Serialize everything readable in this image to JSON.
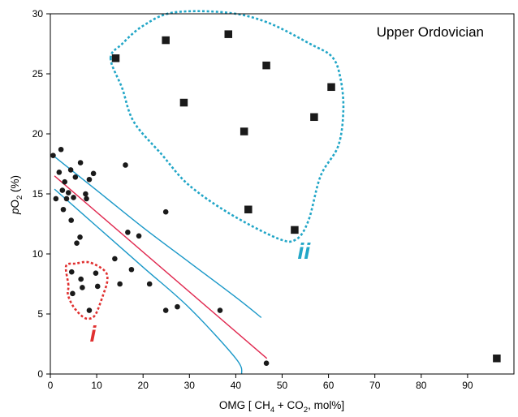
{
  "chart_data": {
    "type": "scatter",
    "title": "Upper Ordovician",
    "xlabel_parts": [
      "OMG [ CH",
      "4",
      " + CO",
      "2",
      ", mol%]"
    ],
    "ylabel_parts": [
      "p",
      "O",
      "2",
      " (%)"
    ],
    "xlim": [
      0,
      100
    ],
    "ylim": [
      0,
      30
    ],
    "x_ticks": [
      0,
      10,
      20,
      30,
      40,
      50,
      60,
      70,
      80,
      90
    ],
    "y_ticks": [
      0,
      5,
      10,
      15,
      20,
      25,
      30
    ],
    "grid": false,
    "series": [
      {
        "marker": "circle",
        "color": "#1a1a1a",
        "points": [
          [
            0.6,
            18.2
          ],
          [
            2.3,
            18.7
          ],
          [
            1.2,
            14.6
          ],
          [
            1.9,
            16.8
          ],
          [
            2.6,
            15.3
          ],
          [
            3.1,
            16.0
          ],
          [
            2.8,
            13.7
          ],
          [
            3.5,
            14.6
          ],
          [
            3.9,
            15.1
          ],
          [
            4.4,
            17.0
          ],
          [
            5.0,
            14.7
          ],
          [
            5.4,
            16.4
          ],
          [
            6.5,
            17.6
          ],
          [
            7.6,
            15.0
          ],
          [
            7.8,
            14.6
          ],
          [
            8.4,
            16.2
          ],
          [
            9.3,
            16.7
          ],
          [
            4.5,
            12.8
          ],
          [
            5.7,
            10.9
          ],
          [
            6.4,
            11.4
          ],
          [
            4.6,
            8.5
          ],
          [
            6.6,
            7.9
          ],
          [
            4.8,
            6.7
          ],
          [
            6.9,
            7.2
          ],
          [
            9.8,
            8.4
          ],
          [
            10.2,
            7.3
          ],
          [
            8.4,
            5.3
          ],
          [
            13.9,
            9.6
          ],
          [
            15.0,
            7.5
          ],
          [
            16.2,
            17.4
          ],
          [
            16.7,
            11.8
          ],
          [
            17.5,
            8.7
          ],
          [
            19.1,
            11.5
          ],
          [
            21.4,
            7.5
          ],
          [
            24.9,
            13.5
          ],
          [
            24.9,
            5.3
          ],
          [
            27.4,
            5.6
          ],
          [
            36.6,
            5.3
          ],
          [
            46.6,
            0.9
          ]
        ]
      },
      {
        "marker": "square",
        "color": "#1a1a1a",
        "points": [
          [
            14.1,
            26.3
          ],
          [
            24.9,
            27.8
          ],
          [
            38.4,
            28.3
          ],
          [
            46.6,
            25.7
          ],
          [
            60.6,
            23.9
          ],
          [
            28.8,
            22.6
          ],
          [
            56.9,
            21.4
          ],
          [
            41.8,
            20.2
          ],
          [
            42.7,
            13.7
          ],
          [
            52.7,
            12.0
          ],
          [
            96.3,
            1.3
          ]
        ]
      }
    ],
    "fit_line": {
      "color": "#e0284f",
      "x": [
        0.9,
        46.7
      ],
      "y": [
        16.5,
        1.3
      ]
    },
    "confidence_band": {
      "color": "#1a98c8",
      "upper": {
        "x": [
          0.9,
          10,
          20,
          30,
          40,
          45.5
        ],
        "y": [
          18.1,
          15.3,
          12.2,
          9.3,
          6.4,
          4.7
        ]
      },
      "lower": {
        "x": [
          0.9,
          10,
          20,
          30,
          40,
          41.3
        ],
        "y": [
          15.4,
          12.3,
          8.9,
          5.5,
          1.3,
          0.0
        ]
      }
    },
    "group_outlines": [
      {
        "label": "i",
        "color": "#e03030",
        "outline": [
          [
            3.9,
            7.4
          ],
          [
            3.4,
            9.0
          ],
          [
            5.5,
            9.2
          ],
          [
            8.4,
            9.3
          ],
          [
            11.7,
            8.6
          ],
          [
            12.3,
            7.8
          ],
          [
            11.4,
            6.6
          ],
          [
            9.8,
            5.0
          ],
          [
            8.4,
            4.6
          ],
          [
            6.9,
            4.8
          ],
          [
            5.0,
            5.6
          ],
          [
            3.8,
            6.6
          ]
        ],
        "label_pos": [
          9.2,
          2.7
        ]
      },
      {
        "label": "ii",
        "color": "#22a6c7",
        "outline": [
          [
            13.0,
            26.3
          ],
          [
            15.5,
            27.5
          ],
          [
            20.0,
            29.0
          ],
          [
            26.5,
            30.1
          ],
          [
            38.0,
            30.1
          ],
          [
            46.7,
            29.3
          ],
          [
            56.0,
            27.5
          ],
          [
            60.8,
            26.4
          ],
          [
            62.6,
            24.6
          ],
          [
            63.2,
            22.0
          ],
          [
            62.1,
            19.0
          ],
          [
            58.3,
            16.5
          ],
          [
            55.7,
            12.8
          ],
          [
            53.0,
            11.2
          ],
          [
            49.0,
            11.3
          ],
          [
            38.5,
            13.4
          ],
          [
            29.7,
            15.8
          ],
          [
            24.0,
            18.3
          ],
          [
            18.0,
            21.0
          ],
          [
            15.5,
            23.8
          ]
        ],
        "label_pos": [
          54.7,
          9.6
        ]
      }
    ]
  }
}
